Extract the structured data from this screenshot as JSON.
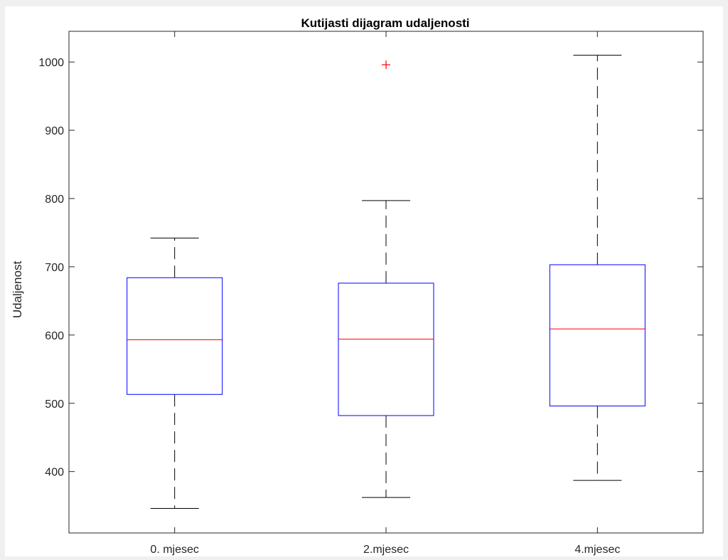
{
  "chart_data": {
    "type": "boxplot",
    "title": "Kutijasti dijagram udaljenosti",
    "xlabel": "",
    "ylabel": "Udaljenost",
    "ylim": [
      310,
      1045
    ],
    "yticks": [
      400,
      500,
      600,
      700,
      800,
      900,
      1000
    ],
    "categories": [
      "0. mjesec",
      "2.mjesec",
      "4.mjesec"
    ],
    "boxes": [
      {
        "category": "0. mjesec",
        "whisker_low": 346,
        "q1": 513,
        "median": 593,
        "q3": 684,
        "whisker_high": 742,
        "outliers": []
      },
      {
        "category": "2.mjesec",
        "whisker_low": 362,
        "q1": 482,
        "median": 594,
        "q3": 676,
        "whisker_high": 797,
        "outliers": [
          996
        ]
      },
      {
        "category": "4.mjesec",
        "whisker_low": 387,
        "q1": 496,
        "median": 609,
        "q3": 703,
        "whisker_high": 1010,
        "outliers": []
      }
    ],
    "grid": false,
    "colors": {
      "box": "#0000ff",
      "median": "#ff0000",
      "whisker": "#000000",
      "outlier": "#ff0000"
    }
  }
}
